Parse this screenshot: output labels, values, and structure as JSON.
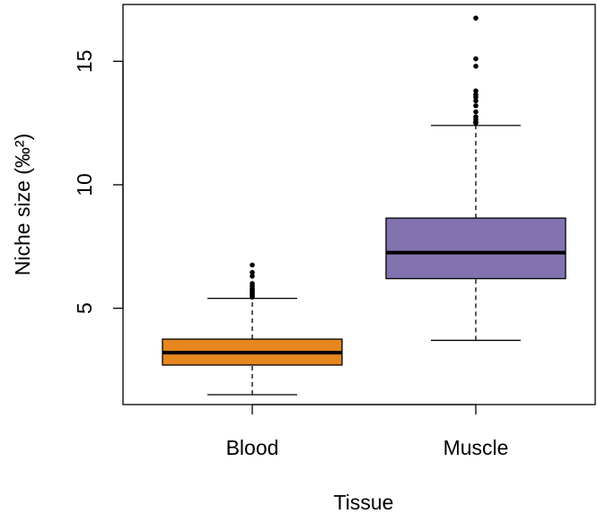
{
  "chart_data": {
    "type": "box",
    "xlabel": "Tissue",
    "ylabel": "Niche size (‰²)",
    "ylim": [
      1.1,
      17.3
    ],
    "yticks": [
      5,
      10,
      15
    ],
    "grid": false,
    "categories": [
      "Blood",
      "Muscle"
    ],
    "boxes": [
      {
        "name": "Blood",
        "color": "#e6861e",
        "whisker_low": 1.5,
        "q1": 2.7,
        "median": 3.2,
        "q3": 3.75,
        "whisker_high": 5.4,
        "outliers": [
          5.45,
          5.5,
          5.55,
          5.6,
          5.65,
          5.7,
          5.75,
          5.8,
          5.9,
          6.0,
          6.3,
          6.45,
          6.75
        ]
      },
      {
        "name": "Muscle",
        "color": "#8273b0",
        "whisker_low": 3.7,
        "q1": 6.2,
        "median": 7.25,
        "q3": 8.65,
        "whisker_high": 12.4,
        "outliers": [
          12.5,
          12.55,
          12.65,
          12.75,
          12.95,
          13.2,
          13.4,
          13.55,
          13.65,
          13.8,
          14.8,
          15.1,
          16.75
        ]
      }
    ]
  }
}
